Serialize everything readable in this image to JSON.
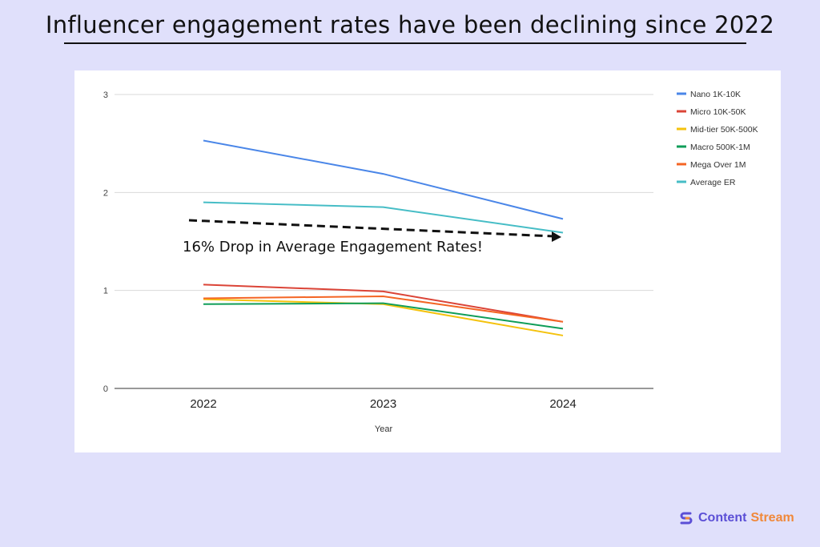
{
  "title": "Influencer engagement rates have been declining since 2022",
  "annotation": "16% Drop in Average Engagement Rates!",
  "logo": {
    "part1": "Content",
    "part2": "Stream",
    "color1": "#5b4fd6",
    "color2": "#f0883a"
  },
  "chart_data": {
    "type": "line",
    "title": "",
    "xlabel": "Year",
    "ylabel": "",
    "categories": [
      "2022",
      "2023",
      "2024"
    ],
    "ylim": [
      0,
      3
    ],
    "yticks": [
      "0",
      "1",
      "2",
      "3"
    ],
    "grid": true,
    "legend": "right",
    "series": [
      {
        "name": "Nano 1K-10K",
        "color": "#4a86e8",
        "values": [
          2.53,
          2.19,
          1.73
        ]
      },
      {
        "name": "Micro 10K-50K",
        "color": "#db4437",
        "values": [
          1.06,
          0.99,
          0.68
        ]
      },
      {
        "name": "Mid-tier 50K-500K",
        "color": "#f4c20d",
        "values": [
          0.91,
          0.86,
          0.54
        ]
      },
      {
        "name": "Macro 500K-1M",
        "color": "#0f9d58",
        "values": [
          0.86,
          0.87,
          0.61
        ]
      },
      {
        "name": "Mega Over 1M",
        "color": "#f46524",
        "values": [
          0.92,
          0.94,
          0.68
        ]
      },
      {
        "name": "Average ER",
        "color": "#46bdc6",
        "values": [
          1.9,
          1.85,
          1.59
        ]
      }
    ]
  }
}
